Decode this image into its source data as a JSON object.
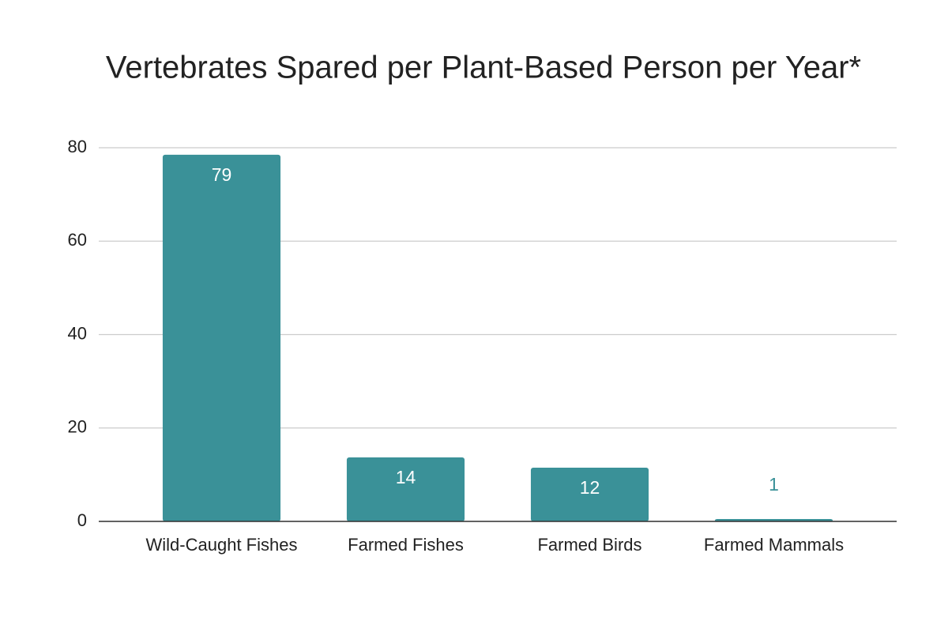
{
  "chart_data": {
    "type": "bar",
    "title": "Vertebrates Spared per Plant-Based Person per Year*",
    "categories": [
      "Wild-Caught Fishes",
      "Farmed Fishes",
      "Farmed Birds",
      "Farmed Mammals"
    ],
    "values": [
      78.5,
      13.7,
      11.5,
      0.5
    ],
    "value_labels": [
      "79",
      "14",
      "12",
      "1"
    ],
    "color": "#3a9198",
    "ylim": [
      0,
      80
    ],
    "yticks": [
      0,
      20,
      40,
      60,
      80
    ],
    "grid": true
  }
}
